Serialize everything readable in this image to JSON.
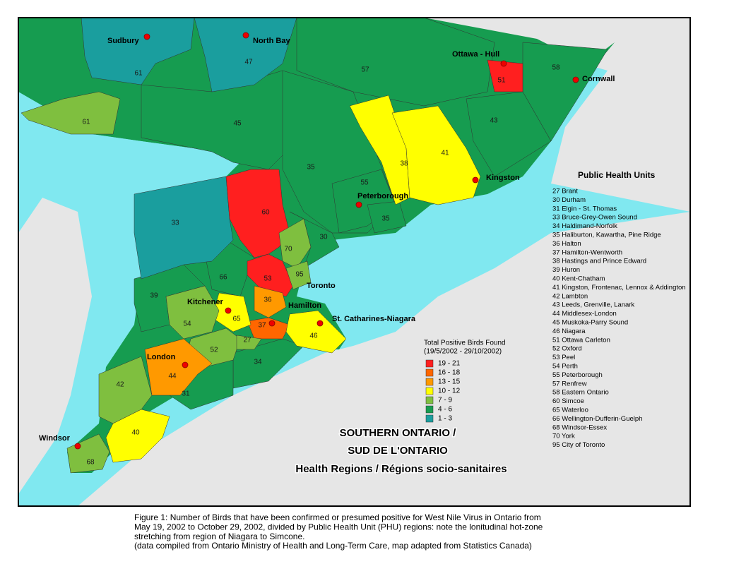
{
  "map": {
    "title": [
      "SOUTHERN ONTARIO /",
      "SUD DE L'ONTARIO",
      "Health Regions / Régions socio-sanitaires"
    ],
    "cities": [
      "Sudbury",
      "North Bay",
      "Ottawa - Hull",
      "Cornwall",
      "Kingston",
      "Peterborough",
      "Toronto",
      "Hamilton",
      "St. Catharines-Niagara",
      "Kitchener",
      "London",
      "Windsor"
    ],
    "regions": [
      {
        "label": "57",
        "color": "#169c50"
      },
      {
        "label": "58",
        "color": "#169c50"
      },
      {
        "label": "43",
        "color": "#169c50"
      },
      {
        "label": "45",
        "color": "#169c50"
      },
      {
        "label": "35",
        "color": "#169c50"
      },
      {
        "label": "30",
        "color": "#169c50"
      },
      {
        "label": "55",
        "color": "#169c50"
      },
      {
        "label": "35",
        "color": "#169c50"
      },
      {
        "label": "66",
        "color": "#169c50"
      },
      {
        "label": "39",
        "color": "#169c50"
      },
      {
        "label": "34",
        "color": "#169c50"
      },
      {
        "label": "31",
        "color": "#169c50"
      },
      {
        "label": "61",
        "color": "#1a9e9e"
      },
      {
        "label": "47",
        "color": "#1a9e9e"
      },
      {
        "label": "61",
        "color": "#7fbf3f"
      },
      {
        "label": "33",
        "color": "#1a9e9e"
      },
      {
        "label": "60",
        "color": "#ff1f1f"
      },
      {
        "label": "53",
        "color": "#ff1f1f"
      },
      {
        "label": "51",
        "color": "#ff1f1f"
      },
      {
        "label": "70",
        "color": "#7fbf3f"
      },
      {
        "label": "95",
        "color": "#7fbf3f"
      },
      {
        "label": "36",
        "color": "#ff9900"
      },
      {
        "label": "37",
        "color": "#ff6600"
      },
      {
        "label": "65",
        "color": "#ffff00"
      },
      {
        "label": "46",
        "color": "#ffff00"
      },
      {
        "label": "54",
        "color": "#7fbf3f"
      },
      {
        "label": "52",
        "color": "#7fbf3f"
      },
      {
        "label": "27",
        "color": "#7fbf3f"
      },
      {
        "label": "44",
        "color": "#ff9900"
      },
      {
        "label": "42",
        "color": "#7fbf3f"
      },
      {
        "label": "40",
        "color": "#ffff00"
      },
      {
        "label": "68",
        "color": "#7fbf3f"
      },
      {
        "label": "38",
        "color": "#ffff00"
      },
      {
        "label": "41",
        "color": "#ffff00"
      }
    ]
  },
  "legend": {
    "title": "Total Positive Birds Found",
    "subtitle": "(19/5/2002 - 29/10/2002)",
    "items": [
      {
        "label": "19 - 21",
        "color": "#ff1f1f"
      },
      {
        "label": "16 - 18",
        "color": "#ff6600"
      },
      {
        "label": "13 - 15",
        "color": "#ff9900"
      },
      {
        "label": "10 - 12",
        "color": "#ffff00"
      },
      {
        "label": "7 -  9",
        "color": "#7fbf3f"
      },
      {
        "label": "4 -  6",
        "color": "#169c50"
      },
      {
        "label": "1 -  3",
        "color": "#1a9e9e"
      }
    ]
  },
  "public_health_units": {
    "title": "Public Health Units",
    "items": [
      "27 Brant",
      "30 Durham",
      "31 Elgin - St. Thomas",
      "33 Bruce-Grey-Owen Sound",
      "34 Haldimand-Norfolk",
      "35 Haliburton, Kawartha, Pine Ridge",
      "36 Halton",
      "37 Hamilton-Wentworth",
      "38 Hastings and Prince Edward",
      "39 Huron",
      "40 Kent-Chatham",
      "41 Kingston, Frontenac, Lennox & Addington",
      "42 Lambton",
      "43 Leeds, Grenville, Lanark",
      "44 Middlesex-London",
      "45 Muskoka-Parry Sound",
      "46 Niagara",
      "51 Ottawa Carleton",
      "52 Oxford",
      "53 Peel",
      "54 Perth",
      "55 Peterborough",
      "57 Renfrew",
      "58 Eastern Ontario",
      "60 Simcoe",
      "65 Waterloo",
      "66 Wellington-Dufferin-Guelph",
      "68 Windsor-Essex",
      "70 York",
      "95 City of Toronto"
    ]
  },
  "caption": [
    "Figure 1: Number of Birds that have been confirmed or presumed positive for West Nile Virus in Ontario from",
    "May 19, 2002 to October 29, 2002, divided by Public Health Unit (PHU) regions: note the lonitudinal hot-zone",
    "stretching from region of Niagara to Simcone.",
    "(data compiled from Ontario Ministry of Health and Long-Term Care, map adapted from Statistics Canada)"
  ]
}
